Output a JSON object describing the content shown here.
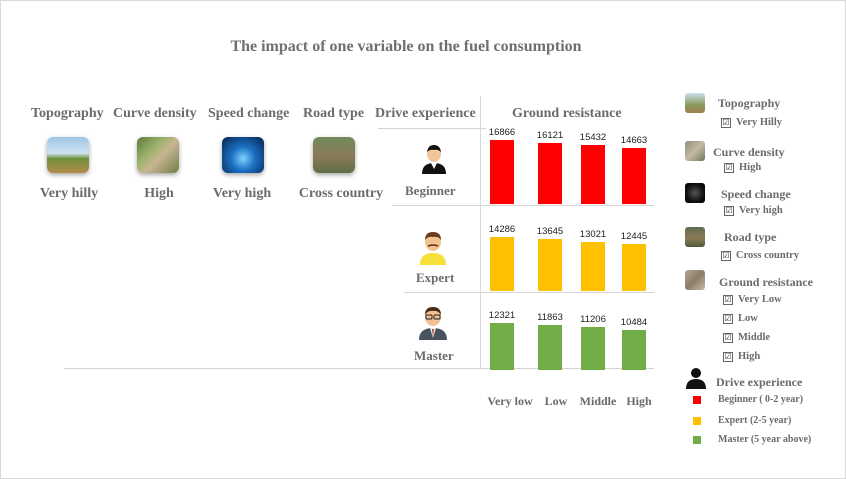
{
  "title": "The impact of one variable on the fuel consumption",
  "variables": {
    "headers": [
      "Topography",
      "Curve density",
      "Speed change",
      "Road type",
      "Drive experience",
      "Ground resistance"
    ],
    "values": [
      "Very hilly",
      "High",
      "Very high",
      "Cross country"
    ]
  },
  "experience_rows": [
    "Beginner",
    "Expert",
    "Master"
  ],
  "chart_data": {
    "type": "bar",
    "title": "The impact of one variable on the fuel consumption",
    "xlabel": "Ground resistance",
    "categories": [
      "Very low",
      "Low",
      "Middle",
      "High"
    ],
    "series": [
      {
        "name": "Beginner ( 0-2 year)",
        "color": "#ff0000",
        "values": [
          16866,
          16121,
          15432,
          14663
        ]
      },
      {
        "name": "Expert  (2-5 year)",
        "color": "#ffc000",
        "values": [
          14286,
          13645,
          13021,
          12445
        ]
      },
      {
        "name": "Master (5 year above)",
        "color": "#70ad47",
        "values": [
          12321,
          11863,
          11206,
          10484
        ]
      }
    ],
    "ylim": [
      0,
      17000
    ],
    "layout": "small-multiples, one panel per drive experience"
  },
  "legend": {
    "topography": {
      "label": "Topography",
      "item": "Very Hilly"
    },
    "curve_density": {
      "label": "Curve density",
      "item": "High"
    },
    "speed_change": {
      "label": "Speed change",
      "item": "Very high"
    },
    "road_type": {
      "label": "Road type",
      "item": "Cross country"
    },
    "ground_resistance": {
      "label": "Ground resistance",
      "items": [
        "Very Low",
        "Low",
        "Middle",
        "High"
      ]
    },
    "drive_experience": {
      "label": "Drive experience",
      "items": [
        "Beginner ( 0-2 year)",
        "Expert  (2-5 year)",
        "Master (5 year above)"
      ]
    },
    "check_symbol": "☑"
  },
  "colors": {
    "beginner": "#ff0000",
    "expert": "#ffc000",
    "master": "#70ad47"
  }
}
